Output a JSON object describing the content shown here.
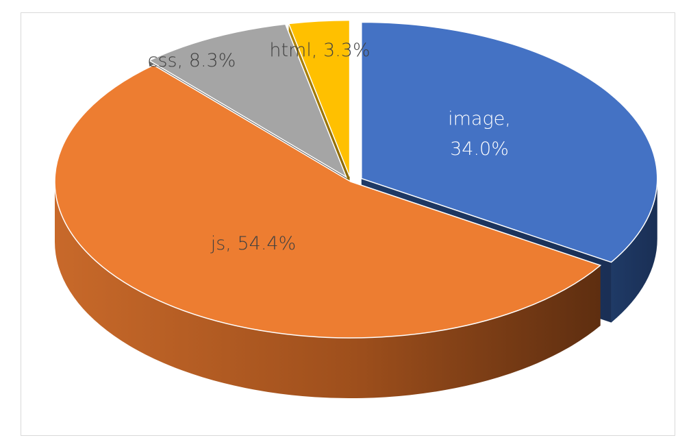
{
  "chart_data": {
    "type": "pie",
    "title": "",
    "categories": [
      "image",
      "js",
      "css",
      "html"
    ],
    "values": [
      34.0,
      54.4,
      8.3,
      3.3
    ],
    "value_unit": "%",
    "data_labels": [
      "image,\n34.0%",
      "js, 54.4%",
      "css, 8.3%",
      "html, 3.3%"
    ],
    "colors": [
      "#4472C4",
      "#ED7D31",
      "#A5A5A5",
      "#FFC000"
    ],
    "exploded": true,
    "three_d": true,
    "legend": "none"
  }
}
